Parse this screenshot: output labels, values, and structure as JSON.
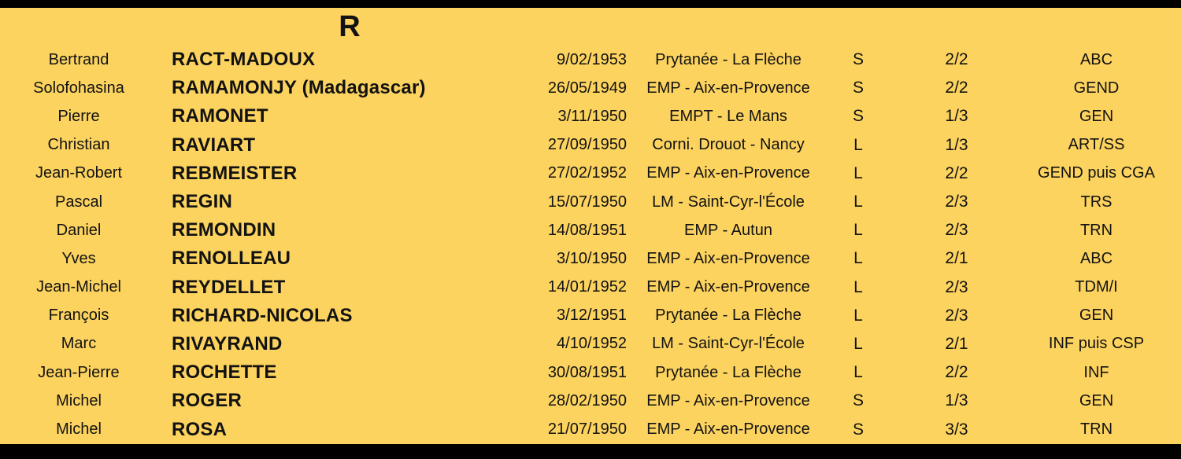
{
  "colors": {
    "background": "#fcd35f",
    "bar": "#000000",
    "text": "#121212"
  },
  "header": {
    "section_letter": "R"
  },
  "table": {
    "rows": [
      {
        "first_name": "Bertrand",
        "last_name": "RACT-MADOUX",
        "birth_date": "9/02/1953",
        "school": "Prytanée - La Flèche",
        "letter": "S",
        "fraction": "2/2",
        "branch": "ABC"
      },
      {
        "first_name": "Solofohasina",
        "last_name": "RAMAMONJY (Madagascar)",
        "birth_date": "26/05/1949",
        "school": "EMP - Aix-en-Provence",
        "letter": "S",
        "fraction": "2/2",
        "branch": "GEND"
      },
      {
        "first_name": "Pierre",
        "last_name": "RAMONET",
        "birth_date": "3/11/1950",
        "school": "EMPT - Le Mans",
        "letter": "S",
        "fraction": "1/3",
        "branch": "GEN"
      },
      {
        "first_name": "Christian",
        "last_name": "RAVIART",
        "birth_date": "27/09/1950",
        "school": "Corni. Drouot - Nancy",
        "letter": "L",
        "fraction": "1/3",
        "branch": "ART/SS"
      },
      {
        "first_name": "Jean-Robert",
        "last_name": "REBMEISTER",
        "birth_date": "27/02/1952",
        "school": "EMP - Aix-en-Provence",
        "letter": "L",
        "fraction": "2/2",
        "branch": "GEND puis CGA"
      },
      {
        "first_name": "Pascal",
        "last_name": "REGIN",
        "birth_date": "15/07/1950",
        "school": "LM - Saint-Cyr-l'École",
        "letter": "L",
        "fraction": "2/3",
        "branch": "TRS"
      },
      {
        "first_name": "Daniel",
        "last_name": "REMONDIN",
        "birth_date": "14/08/1951",
        "school": "EMP - Autun",
        "letter": "L",
        "fraction": "2/3",
        "branch": "TRN"
      },
      {
        "first_name": "Yves",
        "last_name": "RENOLLEAU",
        "birth_date": "3/10/1950",
        "school": "EMP - Aix-en-Provence",
        "letter": "L",
        "fraction": "2/1",
        "branch": "ABC"
      },
      {
        "first_name": "Jean-Michel",
        "last_name": "REYDELLET",
        "birth_date": "14/01/1952",
        "school": "EMP - Aix-en-Provence",
        "letter": "L",
        "fraction": "2/3",
        "branch": "TDM/I"
      },
      {
        "first_name": "François",
        "last_name": "RICHARD-NICOLAS",
        "birth_date": "3/12/1951",
        "school": "Prytanée - La Flèche",
        "letter": "L",
        "fraction": "2/3",
        "branch": "GEN"
      },
      {
        "first_name": "Marc",
        "last_name": "RIVAYRAND",
        "birth_date": "4/10/1952",
        "school": "LM - Saint-Cyr-l'École",
        "letter": "L",
        "fraction": "2/1",
        "branch": "INF puis CSP"
      },
      {
        "first_name": "Jean-Pierre",
        "last_name": "ROCHETTE",
        "birth_date": "30/08/1951",
        "school": "Prytanée - La Flèche",
        "letter": "L",
        "fraction": "2/2",
        "branch": "INF"
      },
      {
        "first_name": "Michel",
        "last_name": "ROGER",
        "birth_date": "28/02/1950",
        "school": "EMP - Aix-en-Provence",
        "letter": "S",
        "fraction": "1/3",
        "branch": "GEN"
      },
      {
        "first_name": "Michel",
        "last_name": "ROSA",
        "birth_date": "21/07/1950",
        "school": "EMP - Aix-en-Provence",
        "letter": "S",
        "fraction": "3/3",
        "branch": "TRN"
      }
    ]
  }
}
